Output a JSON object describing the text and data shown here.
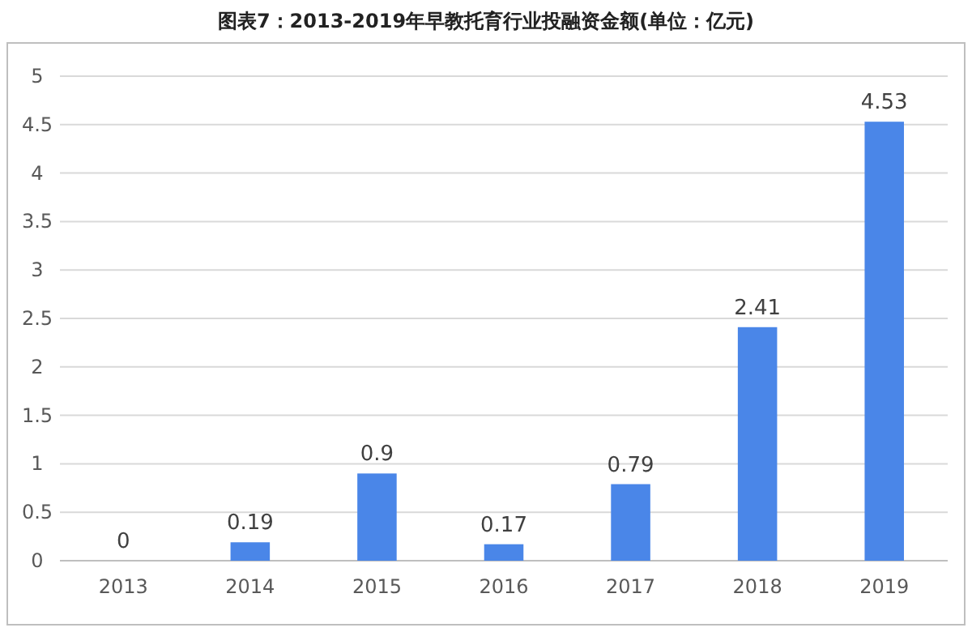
{
  "chart_data": {
    "type": "bar",
    "title": "图表7：2013-2019年早教托育行业投融资金额(单位：亿元)",
    "categories": [
      "2013",
      "2014",
      "2015",
      "2016",
      "2017",
      "2018",
      "2019"
    ],
    "values": [
      0,
      0.19,
      0.9,
      0.17,
      0.79,
      2.41,
      4.53
    ],
    "color": "#4a86e8",
    "ylim": [
      0,
      5
    ],
    "yticks": [
      0,
      0.5,
      1,
      1.5,
      2,
      2.5,
      3,
      3.5,
      4,
      4.5,
      5
    ],
    "grid": "y",
    "data_labels": true
  }
}
